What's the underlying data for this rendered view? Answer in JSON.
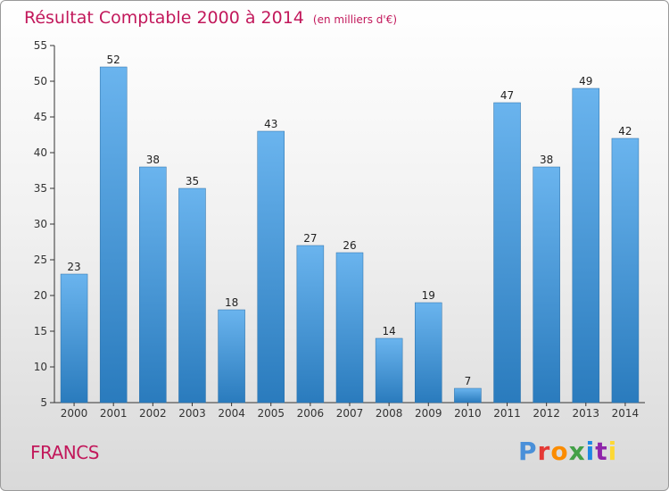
{
  "header": {
    "title": "Résultat Comptable 2000 à 2014",
    "subtitle": "(en milliers d'€)"
  },
  "footer": {
    "commune": "FRANCS",
    "brand": "Proxiti",
    "brand_colors": [
      "#4a90d9",
      "#e53935",
      "#fb8c00",
      "#43a047",
      "#1e88e5",
      "#8e24aa",
      "#fdd835"
    ]
  },
  "colors": {
    "bar_light": "#6ab4ee",
    "bar_dark": "#2a7bbd",
    "accent": "#c2185b"
  },
  "chart_data": {
    "type": "bar",
    "title": "Résultat Comptable 2000 à 2014",
    "subtitle": "(en milliers d'€)",
    "categories": [
      "2000",
      "2001",
      "2002",
      "2003",
      "2004",
      "2005",
      "2006",
      "2007",
      "2008",
      "2009",
      "2010",
      "2011",
      "2012",
      "2013",
      "2014"
    ],
    "values": [
      23,
      52,
      38,
      35,
      18,
      43,
      27,
      26,
      14,
      19,
      7,
      47,
      38,
      49,
      42
    ],
    "ylim": [
      5,
      55
    ],
    "yticks": [
      5,
      10,
      15,
      20,
      25,
      30,
      35,
      40,
      45,
      50,
      55
    ],
    "grid": false,
    "data_labels": true
  }
}
